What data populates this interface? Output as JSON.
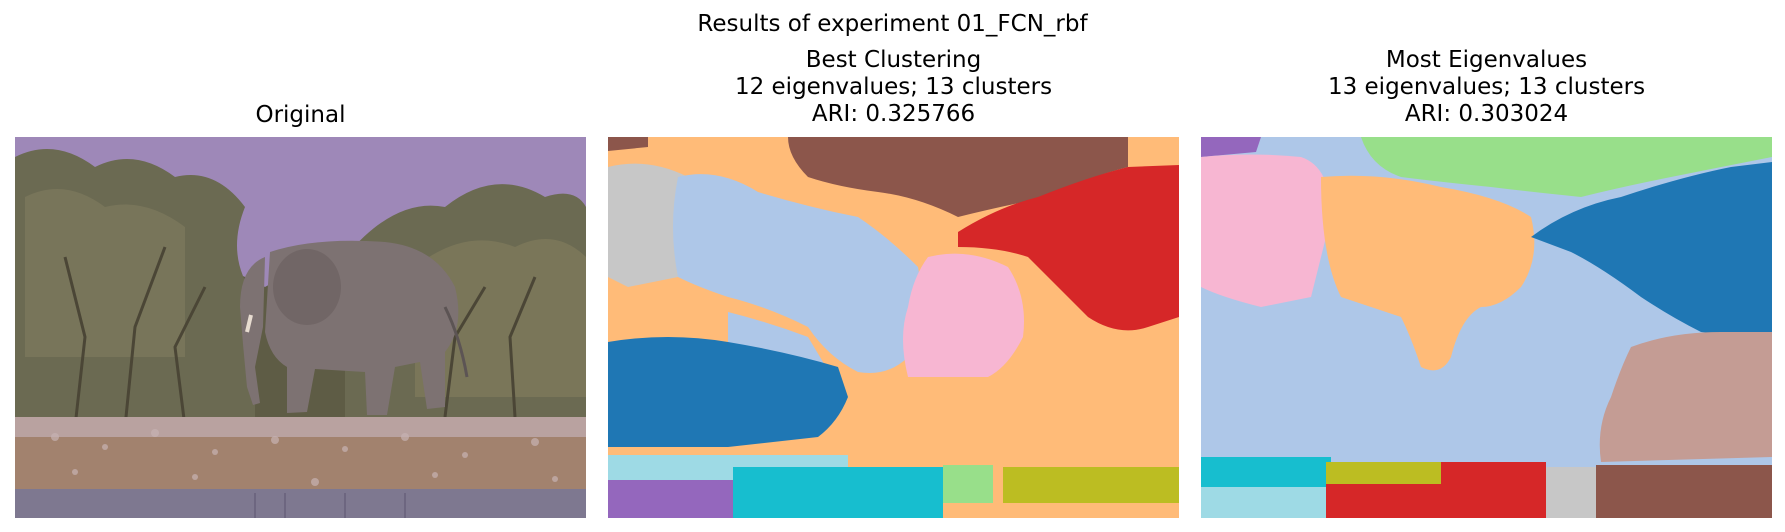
{
  "figure": {
    "suptitle": "Results of experiment 01_FCN_rbf"
  },
  "panels": [
    {
      "title_lines": [
        "Original"
      ],
      "content": "photo of an elephant walking by a waterhole"
    },
    {
      "title_lines": [
        "Best Clustering",
        "12 eigenvalues; 13 clusters",
        "ARI: 0.325766"
      ],
      "content": "segmentation map"
    },
    {
      "title_lines": [
        "Most Eigenvalues",
        "13 eigenvalues; 13 clusters",
        "ARI: 0.303024"
      ],
      "content": "segmentation map"
    }
  ],
  "colors": {
    "sky": "#9e88b8",
    "ground": "#a2826e",
    "water": "#7e7890",
    "tree": "#6b6a52",
    "elephant": "#7d7272",
    "cluster_palette": [
      "#1f77b4",
      "#aec7e8",
      "#ffbb78",
      "#98df8a",
      "#d62728",
      "#9467bd",
      "#c5b0d5",
      "#8c564b",
      "#c49c94",
      "#f7b6d2",
      "#c7c7c7",
      "#bcbd22",
      "#17becf",
      "#9edae5"
    ]
  }
}
